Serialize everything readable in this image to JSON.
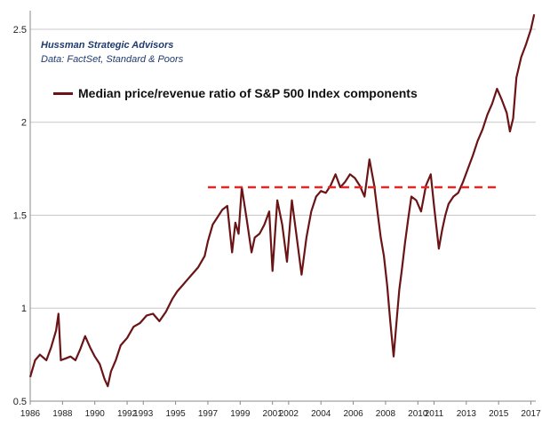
{
  "source": {
    "org": "Hussman Strategic Advisors",
    "data_credit": "Data: FactSet, Standard & Poors"
  },
  "colors": {
    "series": "#6b1416",
    "reference": "#e32626",
    "grid": "#c8c8c8",
    "axis": "#888888"
  },
  "chart_data": {
    "type": "line",
    "title": "",
    "xlabel": "",
    "ylabel": "",
    "xlim": [
      1986,
      2017.3
    ],
    "ylim": [
      0.5,
      2.6
    ],
    "grid": true,
    "y_ticks": [
      "0.5",
      "1",
      "1.5",
      "2",
      "2.5"
    ],
    "y_tick_values": [
      0.5,
      1,
      1.5,
      2,
      2.5
    ],
    "x_ticks": [
      "1986",
      "1988",
      "1990",
      "1992",
      "1993",
      "1995",
      "1997",
      "1999",
      "2001",
      "2002",
      "2004",
      "2006",
      "2008",
      "2010",
      "2011",
      "2013",
      "2015",
      "2017"
    ],
    "x_tick_values": [
      1986,
      1988,
      1990,
      1992,
      1993,
      1995,
      1997,
      1999,
      2001,
      2002,
      2004,
      2006,
      2008,
      2010,
      2011,
      2013,
      2015,
      2017
    ],
    "series": [
      {
        "name": "Median price/revenue ratio of S&P 500 Index components",
        "x": [
          1986.0,
          1986.3,
          1986.6,
          1987.0,
          1987.3,
          1987.6,
          1987.75,
          1987.9,
          1988.2,
          1988.5,
          1988.8,
          1989.1,
          1989.4,
          1989.7,
          1990.0,
          1990.3,
          1990.6,
          1990.8,
          1991.0,
          1991.3,
          1991.6,
          1992.0,
          1992.4,
          1992.8,
          1993.2,
          1993.6,
          1994.0,
          1994.4,
          1994.8,
          1995.1,
          1995.4,
          1995.7,
          1996.0,
          1996.4,
          1996.8,
          1997.0,
          1997.3,
          1997.6,
          1997.9,
          1998.2,
          1998.5,
          1998.7,
          1998.9,
          1999.1,
          1999.4,
          1999.7,
          1999.9,
          2000.2,
          2000.5,
          2000.8,
          2001.0,
          2001.3,
          2001.6,
          2001.9,
          2002.2,
          2002.5,
          2002.8,
          2003.1,
          2003.4,
          2003.7,
          2004.0,
          2004.3,
          2004.6,
          2004.9,
          2005.2,
          2005.5,
          2005.8,
          2006.1,
          2006.4,
          2006.7,
          2007.0,
          2007.3,
          2007.5,
          2007.7,
          2007.9,
          2008.1,
          2008.3,
          2008.5,
          2008.7,
          2008.85,
          2009.0,
          2009.2,
          2009.4,
          2009.6,
          2009.9,
          2010.2,
          2010.5,
          2010.8,
          2011.0,
          2011.3,
          2011.5,
          2011.7,
          2011.9,
          2012.2,
          2012.5,
          2012.8,
          2013.1,
          2013.4,
          2013.7,
          2014.0,
          2014.3,
          2014.6,
          2014.9,
          2015.2,
          2015.5,
          2015.7,
          2015.9,
          2016.1,
          2016.4,
          2016.7,
          2017.0,
          2017.2
        ],
        "values": [
          0.63,
          0.72,
          0.75,
          0.72,
          0.79,
          0.88,
          0.97,
          0.72,
          0.73,
          0.74,
          0.72,
          0.78,
          0.85,
          0.79,
          0.74,
          0.7,
          0.62,
          0.58,
          0.66,
          0.72,
          0.8,
          0.84,
          0.9,
          0.92,
          0.96,
          0.97,
          0.93,
          0.98,
          1.05,
          1.09,
          1.12,
          1.15,
          1.18,
          1.22,
          1.28,
          1.36,
          1.45,
          1.49,
          1.53,
          1.55,
          1.3,
          1.46,
          1.4,
          1.65,
          1.48,
          1.3,
          1.38,
          1.4,
          1.45,
          1.52,
          1.2,
          1.58,
          1.45,
          1.25,
          1.58,
          1.38,
          1.18,
          1.38,
          1.52,
          1.6,
          1.63,
          1.62,
          1.66,
          1.72,
          1.65,
          1.68,
          1.72,
          1.7,
          1.66,
          1.6,
          1.8,
          1.66,
          1.52,
          1.38,
          1.28,
          1.12,
          0.92,
          0.74,
          0.95,
          1.1,
          1.2,
          1.35,
          1.48,
          1.6,
          1.58,
          1.52,
          1.66,
          1.72,
          1.55,
          1.32,
          1.42,
          1.5,
          1.56,
          1.6,
          1.62,
          1.68,
          1.75,
          1.82,
          1.9,
          1.96,
          2.04,
          2.1,
          2.18,
          2.12,
          2.05,
          1.95,
          2.02,
          2.24,
          2.35,
          2.42,
          2.5,
          2.58
        ]
      },
      {
        "name": "reference",
        "style": "dashed",
        "x": [
          1997.0,
          2015.0
        ],
        "values": [
          1.65,
          1.65
        ]
      }
    ]
  }
}
